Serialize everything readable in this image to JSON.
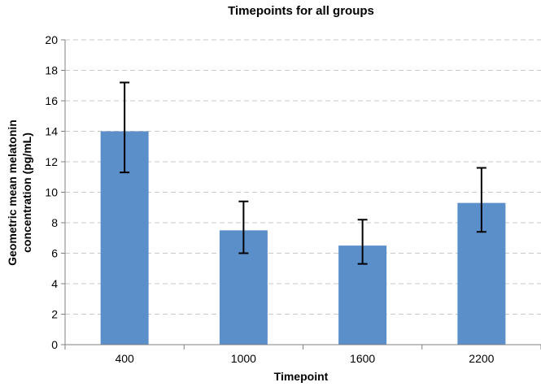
{
  "chart_data": {
    "type": "bar",
    "title": "Timepoints for all groups",
    "xlabel": "Timepoint",
    "ylabel_lines": [
      "Geometric mean melatonin",
      "concentration (pg/mL)"
    ],
    "categories": [
      "400",
      "1000",
      "1600",
      "2200"
    ],
    "values": [
      14.0,
      7.5,
      6.5,
      9.3
    ],
    "error_low": [
      11.3,
      6.0,
      5.3,
      7.4
    ],
    "error_high": [
      17.2,
      9.4,
      8.2,
      11.6
    ],
    "ylim": [
      0,
      20
    ],
    "yticks": [
      0,
      2,
      4,
      6,
      8,
      10,
      12,
      14,
      16,
      18,
      20
    ],
    "grid": true,
    "bar_color": "#5b8fc9",
    "error_color": "#000000",
    "grid_color": "#c8c8c8"
  }
}
